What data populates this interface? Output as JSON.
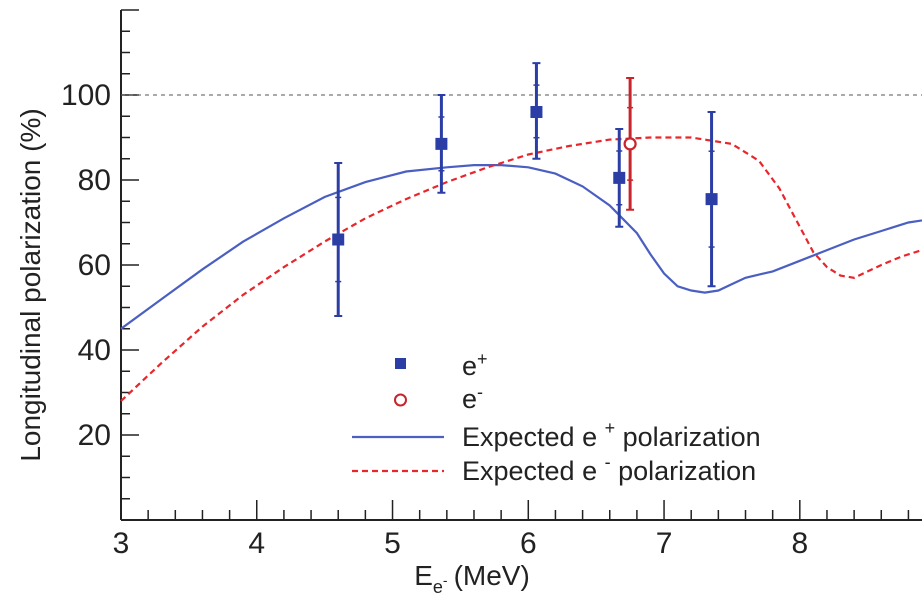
{
  "chart_data": {
    "type": "scatter",
    "xlabel": "E",
    "xlabel_sub": "e",
    "xlabel_subsup": "-",
    "xlabel_unit": "(MeV)",
    "ylabel": "Longitudinal polarization (%)",
    "xlim": [
      3,
      8.9
    ],
    "ylim": [
      0,
      120
    ],
    "x_ticks": [
      3,
      4,
      5,
      6,
      7,
      8
    ],
    "y_ticks": [
      20,
      40,
      60,
      80,
      100
    ],
    "reference_line": {
      "y": 100,
      "style": "dashed"
    },
    "grid": false,
    "legend_position": "bottom-center",
    "series": [
      {
        "name": "e+",
        "legend_base": "e",
        "legend_sup": "+",
        "kind": "points",
        "marker": "filled-square",
        "color": "#2b3ea5",
        "points": [
          {
            "x": 4.6,
            "y": 66,
            "err_hi": 84,
            "err_lo": 48
          },
          {
            "x": 5.36,
            "y": 88.5,
            "err_hi": 100,
            "err_lo": 77
          },
          {
            "x": 6.06,
            "y": 96,
            "err_hi": 107.5,
            "err_lo": 85
          },
          {
            "x": 6.67,
            "y": 80.5,
            "err_hi": 92,
            "err_lo": 69
          },
          {
            "x": 7.35,
            "y": 75.5,
            "err_hi": 96,
            "err_lo": 55
          }
        ]
      },
      {
        "name": "e-",
        "legend_base": "e",
        "legend_sup": "-",
        "kind": "points",
        "marker": "open-circle",
        "color": "#c8242b",
        "points": [
          {
            "x": 6.75,
            "y": 88.5,
            "err_hi": 104,
            "err_lo": 73
          }
        ]
      },
      {
        "name": "Expected e+ polarization",
        "legend_base": "Expected e ",
        "legend_sup": "+",
        "legend_tail": " polarization",
        "kind": "line",
        "style": "solid",
        "color": "#4a5fc1",
        "x": [
          3.0,
          3.3,
          3.6,
          3.9,
          4.2,
          4.5,
          4.8,
          5.1,
          5.4,
          5.6,
          5.8,
          6.0,
          6.2,
          6.4,
          6.6,
          6.8,
          6.9,
          7.0,
          7.1,
          7.2,
          7.3,
          7.4,
          7.5,
          7.6,
          7.8,
          8.0,
          8.2,
          8.4,
          8.6,
          8.8,
          8.9
        ],
        "y": [
          45,
          52,
          59,
          65.5,
          71,
          76,
          79.5,
          82,
          83,
          83.5,
          83.5,
          83,
          81.5,
          78.5,
          74,
          67.5,
          62.5,
          58,
          55,
          54,
          53.5,
          54,
          55.5,
          57,
          58.5,
          61,
          63.5,
          66,
          68,
          70,
          70.5
        ]
      },
      {
        "name": "Expected e- polarization",
        "legend_base": "Expected e ",
        "legend_sup": "-",
        "legend_tail": " polarization",
        "kind": "line",
        "style": "dashed",
        "color": "#e8262b",
        "x": [
          3.0,
          3.3,
          3.6,
          3.9,
          4.2,
          4.5,
          4.8,
          5.1,
          5.4,
          5.7,
          6.0,
          6.3,
          6.6,
          6.9,
          7.2,
          7.5,
          7.7,
          7.85,
          8.0,
          8.1,
          8.2,
          8.3,
          8.4,
          8.5,
          8.6,
          8.75,
          8.9
        ],
        "y": [
          28,
          37,
          45.5,
          53,
          59.5,
          65.5,
          71,
          75.5,
          79.5,
          83,
          86,
          88,
          89.5,
          90,
          90,
          88.5,
          84.5,
          78,
          69,
          63,
          59.5,
          57.5,
          57,
          58.5,
          60,
          62,
          63.5
        ]
      }
    ]
  }
}
